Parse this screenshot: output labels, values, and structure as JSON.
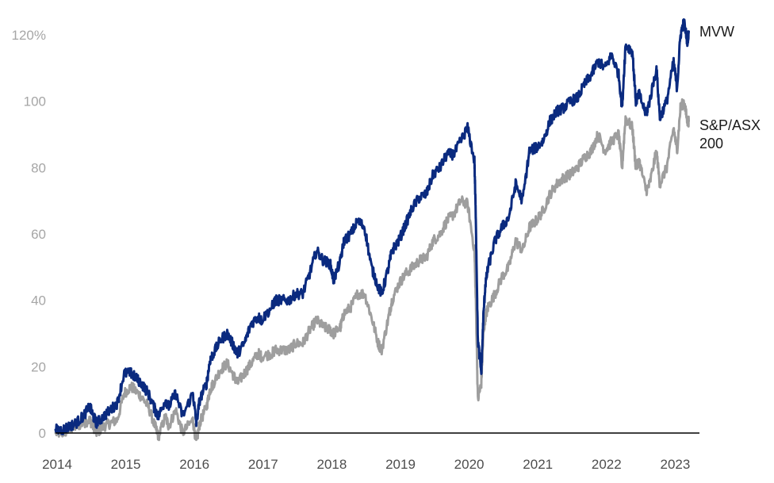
{
  "chart_data": {
    "type": "line",
    "title": "",
    "xlabel": "",
    "ylabel": "",
    "xlim": [
      2014.0,
      2023.4
    ],
    "ylim": [
      0,
      120
    ],
    "y_ticks": [
      0,
      20,
      40,
      60,
      80,
      100,
      120
    ],
    "y_tick_labels": [
      "0",
      "20",
      "40",
      "60",
      "80",
      "100",
      "120%"
    ],
    "x_ticks": [
      2014,
      2015,
      2016,
      2017,
      2018,
      2019,
      2020,
      2021,
      2022,
      2023
    ],
    "x_tick_labels": [
      "2014",
      "2015",
      "2016",
      "2017",
      "2018",
      "2019",
      "2020",
      "2021",
      "2022",
      "2023"
    ],
    "grid": false,
    "legend": "inline labels at right end of lines",
    "colors": {
      "MVW": "#0a2a7f",
      "S&P/ASX 200": "#9e9e9e",
      "axis": "#000000"
    },
    "series": [
      {
        "name": "MVW",
        "label_lines": [
          "MVW"
        ],
        "x": [
          2014.0,
          2014.1,
          2014.2,
          2014.3,
          2014.4,
          2014.5,
          2014.55,
          2014.6,
          2014.7,
          2014.8,
          2014.9,
          2015.0,
          2015.1,
          2015.15,
          2015.25,
          2015.35,
          2015.45,
          2015.5,
          2015.6,
          2015.65,
          2015.75,
          2015.85,
          2016.0,
          2016.05,
          2016.1,
          2016.2,
          2016.25,
          2016.3,
          2016.4,
          2016.5,
          2016.6,
          2016.65,
          2016.75,
          2016.85,
          2016.95,
          2017.0,
          2017.15,
          2017.2,
          2017.3,
          2017.4,
          2017.5,
          2017.6,
          2017.7,
          2017.8,
          2017.9,
          2018.0,
          2018.05,
          2018.15,
          2018.2,
          2018.3,
          2018.4,
          2018.5,
          2018.6,
          2018.7,
          2018.75,
          2018.85,
          2018.9,
          2019.0,
          2019.1,
          2019.2,
          2019.3,
          2019.4,
          2019.5,
          2019.6,
          2019.7,
          2019.8,
          2019.9,
          2020.0,
          2020.1,
          2020.12,
          2020.15,
          2020.2,
          2020.23,
          2020.26,
          2020.3,
          2020.4,
          2020.5,
          2020.6,
          2020.7,
          2020.8,
          2020.9,
          2021.0,
          2021.1,
          2021.2,
          2021.3,
          2021.4,
          2021.5,
          2021.6,
          2021.7,
          2021.8,
          2021.9,
          2022.0,
          2022.1,
          2022.2,
          2022.25,
          2022.3,
          2022.4,
          2022.45,
          2022.5,
          2022.6,
          2022.65,
          2022.75,
          2022.8,
          2022.9,
          2023.0,
          2023.05,
          2023.1,
          2023.15,
          2023.2,
          2023.22
        ],
        "values": [
          1,
          1,
          2,
          3,
          5,
          8,
          5,
          3,
          5,
          7,
          9,
          18,
          18,
          17,
          15,
          12,
          7,
          5,
          10,
          8,
          12,
          5,
          12,
          3,
          10,
          15,
          22,
          24,
          28,
          30,
          26,
          24,
          27,
          33,
          35,
          34,
          38,
          40,
          40,
          40,
          42,
          42,
          48,
          55,
          52,
          51,
          46,
          52,
          58,
          60,
          64,
          62,
          50,
          44,
          42,
          50,
          55,
          58,
          63,
          68,
          71,
          72,
          78,
          80,
          84,
          84,
          88,
          92,
          82,
          65,
          28,
          18,
          35,
          45,
          50,
          58,
          62,
          65,
          75,
          70,
          85,
          86,
          88,
          94,
          97,
          98,
          100,
          101,
          105,
          108,
          112,
          110,
          114,
          108,
          98,
          117,
          115,
          100,
          102,
          96,
          100,
          110,
          95,
          100,
          112,
          104,
          120,
          124,
          118,
          121
        ],
        "end_value": 121
      },
      {
        "name": "S&P/ASX 200",
        "label_lines": [
          "S&P/ASX",
          "200"
        ],
        "x": [
          2014.0,
          2014.1,
          2014.2,
          2014.3,
          2014.4,
          2014.5,
          2014.55,
          2014.6,
          2014.7,
          2014.8,
          2014.9,
          2015.0,
          2015.1,
          2015.15,
          2015.25,
          2015.35,
          2015.45,
          2015.5,
          2015.6,
          2015.65,
          2015.75,
          2015.85,
          2016.0,
          2016.05,
          2016.1,
          2016.2,
          2016.25,
          2016.3,
          2016.4,
          2016.5,
          2016.6,
          2016.65,
          2016.75,
          2016.85,
          2016.95,
          2017.0,
          2017.15,
          2017.2,
          2017.3,
          2017.4,
          2017.5,
          2017.6,
          2017.7,
          2017.8,
          2017.9,
          2018.0,
          2018.05,
          2018.15,
          2018.2,
          2018.3,
          2018.4,
          2018.5,
          2018.6,
          2018.7,
          2018.75,
          2018.85,
          2018.9,
          2019.0,
          2019.1,
          2019.2,
          2019.3,
          2019.4,
          2019.5,
          2019.6,
          2019.7,
          2019.8,
          2019.9,
          2020.0,
          2020.1,
          2020.12,
          2020.15,
          2020.2,
          2020.23,
          2020.26,
          2020.3,
          2020.4,
          2020.5,
          2020.6,
          2020.7,
          2020.8,
          2020.9,
          2021.0,
          2021.1,
          2021.2,
          2021.3,
          2021.4,
          2021.5,
          2021.6,
          2021.7,
          2021.8,
          2021.9,
          2022.0,
          2022.1,
          2022.2,
          2022.25,
          2022.3,
          2022.4,
          2022.45,
          2022.5,
          2022.6,
          2022.65,
          2022.75,
          2022.8,
          2022.9,
          2023.0,
          2023.05,
          2023.1,
          2023.15,
          2023.2,
          2023.22
        ],
        "values": [
          0,
          0,
          1,
          2,
          3,
          4,
          2,
          0,
          2,
          3,
          4,
          12,
          14,
          13,
          11,
          8,
          2,
          -1,
          5,
          2,
          7,
          0,
          4,
          -3,
          3,
          8,
          13,
          15,
          19,
          21,
          17,
          15,
          18,
          21,
          24,
          23,
          24,
          25,
          25,
          25,
          27,
          27,
          31,
          34,
          32,
          31,
          30,
          32,
          36,
          38,
          42,
          42,
          35,
          27,
          25,
          35,
          40,
          45,
          48,
          50,
          52,
          53,
          58,
          60,
          64,
          66,
          70,
          69,
          55,
          40,
          10,
          15,
          30,
          35,
          38,
          42,
          47,
          50,
          58,
          55,
          62,
          64,
          67,
          72,
          75,
          77,
          78,
          80,
          83,
          85,
          90,
          85,
          88,
          90,
          80,
          95,
          92,
          80,
          82,
          73,
          75,
          85,
          75,
          80,
          92,
          85,
          98,
          100,
          94,
          94
        ],
        "end_value": 94
      }
    ]
  }
}
